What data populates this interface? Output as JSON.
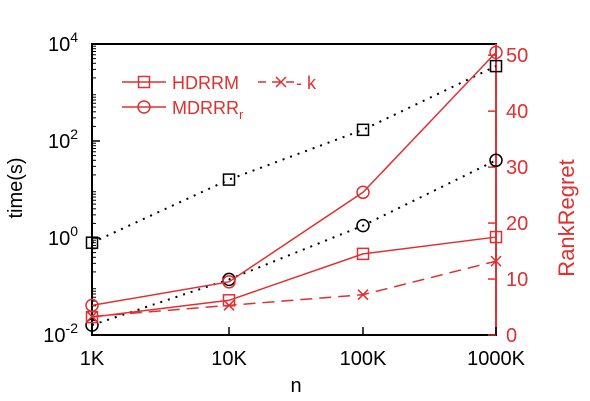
{
  "chart_data": {
    "type": "line",
    "x_axis": {
      "label": "n",
      "categories": [
        "1K",
        "10K",
        "100K",
        "1000K"
      ],
      "scale": "log"
    },
    "y_left": {
      "label": "time(s)",
      "scale": "log",
      "range": [
        0.01,
        10000
      ],
      "tick_exponents": [
        "-2",
        "0",
        "2",
        "4"
      ],
      "tick_base": "10"
    },
    "y_right": {
      "label": "RankRegret",
      "range": [
        0,
        52
      ],
      "ticks": [
        "0",
        "10",
        "20",
        "30",
        "40",
        "50"
      ]
    },
    "legend": {
      "placement": "top-left",
      "entries": [
        {
          "label": "HDRRM",
          "series_ref": "hdrrm",
          "marker": "square",
          "style": "solid"
        },
        {
          "label": "k",
          "series_ref": "hdrrm_k",
          "marker": "cross",
          "style": "dashed",
          "prefix": "- "
        },
        {
          "label": "MDRRR",
          "subscript": "r",
          "series_ref": "mdrrr",
          "marker": "circle",
          "style": "solid"
        }
      ]
    },
    "series": [
      {
        "key": "hdrrm_time",
        "axis": "left",
        "color": "#000000",
        "style": "dotted",
        "marker": "square",
        "values": [
          0.8,
          16,
          170,
          3500
        ]
      },
      {
        "key": "mdrrr_time",
        "axis": "left",
        "color": "#000000",
        "style": "dotted",
        "marker": "circle",
        "values": [
          0.016,
          0.14,
          1.8,
          40
        ]
      },
      {
        "key": "hdrrm",
        "axis": "right",
        "color": "#e03030",
        "style": "solid",
        "marker": "square",
        "values": [
          3.2,
          6.2,
          14.5,
          17.5
        ]
      },
      {
        "key": "hdrrm_k",
        "axis": "right",
        "color": "#e03030",
        "style": "dashed",
        "marker": "cross",
        "values": [
          3.3,
          5.3,
          7.2,
          13.2
        ]
      },
      {
        "key": "mdrrr",
        "axis": "right",
        "color": "#e03030",
        "style": "solid",
        "marker": "circle",
        "values": [
          5.3,
          9.5,
          25.5,
          50.5
        ]
      }
    ],
    "colors": {
      "axis": "#000000",
      "right_axis": "#e03030",
      "series_red": "#e03030"
    }
  }
}
